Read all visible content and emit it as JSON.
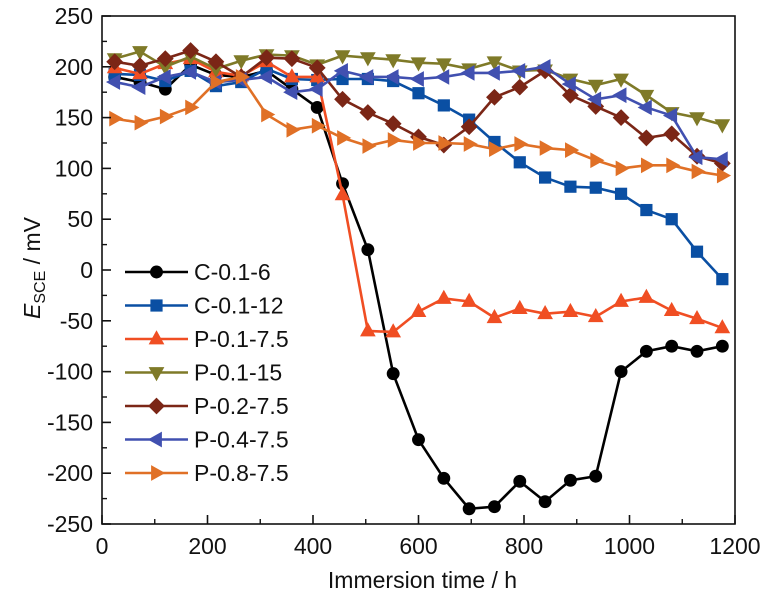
{
  "chart_data": {
    "type": "line",
    "title": "",
    "xlabel": "Immersion time / h",
    "ylabel": {
      "main": "E",
      "subscript": "SCE",
      "suffix": " / mV"
    },
    "xlim": [
      0,
      1200
    ],
    "ylim": [
      -250,
      250
    ],
    "xticks": [
      0,
      200,
      400,
      600,
      800,
      1000,
      1200
    ],
    "xticks_minor": [
      100,
      300,
      500,
      700,
      900,
      1100
    ],
    "yticks": [
      -250,
      -200,
      -150,
      -100,
      -50,
      0,
      50,
      100,
      150,
      200,
      250
    ],
    "yticks_minor": [
      -225,
      -175,
      -125,
      -75,
      -25,
      25,
      75,
      125,
      175,
      225
    ],
    "grid": false,
    "legend_position": "bottom-left",
    "x": [
      24,
      72,
      120,
      168,
      216,
      264,
      312,
      360,
      408,
      456,
      504,
      552,
      600,
      648,
      696,
      744,
      792,
      840,
      888,
      936,
      984,
      1032,
      1080,
      1128,
      1176
    ],
    "series": [
      {
        "name": "C-0.1-6",
        "color": "#000000",
        "marker": "circle",
        "values": [
          190,
          185,
          178,
          202,
          192,
          190,
          196,
          178,
          160,
          85,
          20,
          -102,
          -167,
          -205,
          -235,
          -233,
          -208,
          -228,
          -207,
          -203,
          -100,
          -80,
          -75,
          -80,
          -75
        ]
      },
      {
        "name": "C-0.1-12",
        "color": "#0a4fa3",
        "marker": "square",
        "values": [
          193,
          192,
          186,
          196,
          181,
          185,
          198,
          188,
          187,
          188,
          188,
          186,
          174,
          162,
          148,
          126,
          106,
          91,
          82,
          81,
          75,
          59,
          50,
          18,
          -9
        ]
      },
      {
        "name": "P-0.1-7.5",
        "color": "#f04e23",
        "marker": "triangle-up",
        "values": [
          199,
          193,
          203,
          208,
          195,
          191,
          205,
          190,
          190,
          74,
          -60,
          -61,
          -41,
          -28,
          -31,
          -47,
          -38,
          -43,
          -41,
          -46,
          -31,
          -27,
          -40,
          -48,
          -57
        ]
      },
      {
        "name": "P-0.1-15",
        "color": "#7f7a28",
        "marker": "triangle-down",
        "values": [
          208,
          215,
          200,
          210,
          198,
          206,
          212,
          211,
          202,
          211,
          209,
          207,
          204,
          203,
          198,
          205,
          196,
          197,
          188,
          182,
          188,
          172,
          155,
          150,
          143
        ]
      },
      {
        "name": "P-0.2-7.5",
        "color": "#7b2616",
        "marker": "diamond",
        "values": [
          205,
          201,
          208,
          216,
          205,
          190,
          209,
          208,
          199,
          168,
          155,
          144,
          131,
          123,
          141,
          170,
          180,
          196,
          172,
          161,
          150,
          130,
          134,
          112,
          105
        ]
      },
      {
        "name": "P-0.4-7.5",
        "color": "#4150b0",
        "marker": "triangle-left",
        "values": [
          185,
          180,
          190,
          195,
          185,
          187,
          190,
          175,
          178,
          196,
          190,
          190,
          188,
          190,
          194,
          194,
          196,
          200,
          183,
          168,
          172,
          160,
          152,
          111,
          109
        ]
      },
      {
        "name": "P-0.8-7.5",
        "color": "#e07026",
        "marker": "triangle-right",
        "values": [
          149,
          145,
          151,
          160,
          185,
          190,
          153,
          138,
          142,
          130,
          122,
          128,
          125,
          125,
          124,
          119,
          124,
          120,
          118,
          108,
          100,
          103,
          103,
          97,
          93
        ]
      }
    ]
  }
}
